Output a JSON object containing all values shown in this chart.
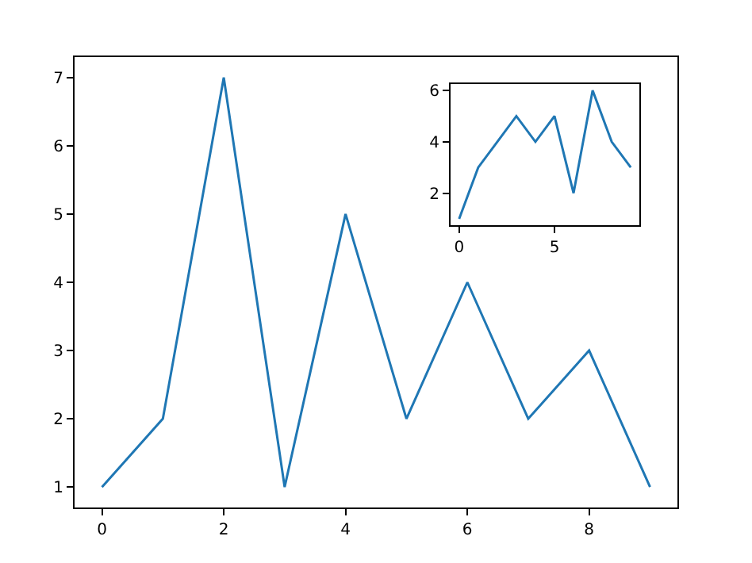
{
  "chart_data": [
    {
      "type": "line",
      "x": [
        0,
        1,
        2,
        3,
        4,
        5,
        6,
        7,
        8,
        9
      ],
      "values": [
        1,
        2,
        7,
        1,
        5,
        2,
        4,
        2,
        3,
        1
      ],
      "color": "#1f77b4",
      "xlim": [
        -0.45,
        9.45
      ],
      "ylim": [
        0.7,
        7.3
      ],
      "xticks": [
        0,
        2,
        4,
        6,
        8
      ],
      "yticks": [
        1,
        2,
        3,
        4,
        5,
        6,
        7
      ],
      "grid": false,
      "legend": false
    },
    {
      "type": "line",
      "x": [
        0,
        1,
        2,
        3,
        4,
        5,
        6,
        7,
        8,
        9
      ],
      "values": [
        1,
        3,
        4,
        5,
        4,
        5,
        2,
        6,
        4,
        3
      ],
      "color": "#1f77b4",
      "xlim": [
        -0.45,
        9.45
      ],
      "ylim": [
        0.75,
        6.25
      ],
      "xticks": [
        0,
        5
      ],
      "yticks": [
        2,
        4,
        6
      ],
      "grid": false,
      "legend": false
    }
  ]
}
